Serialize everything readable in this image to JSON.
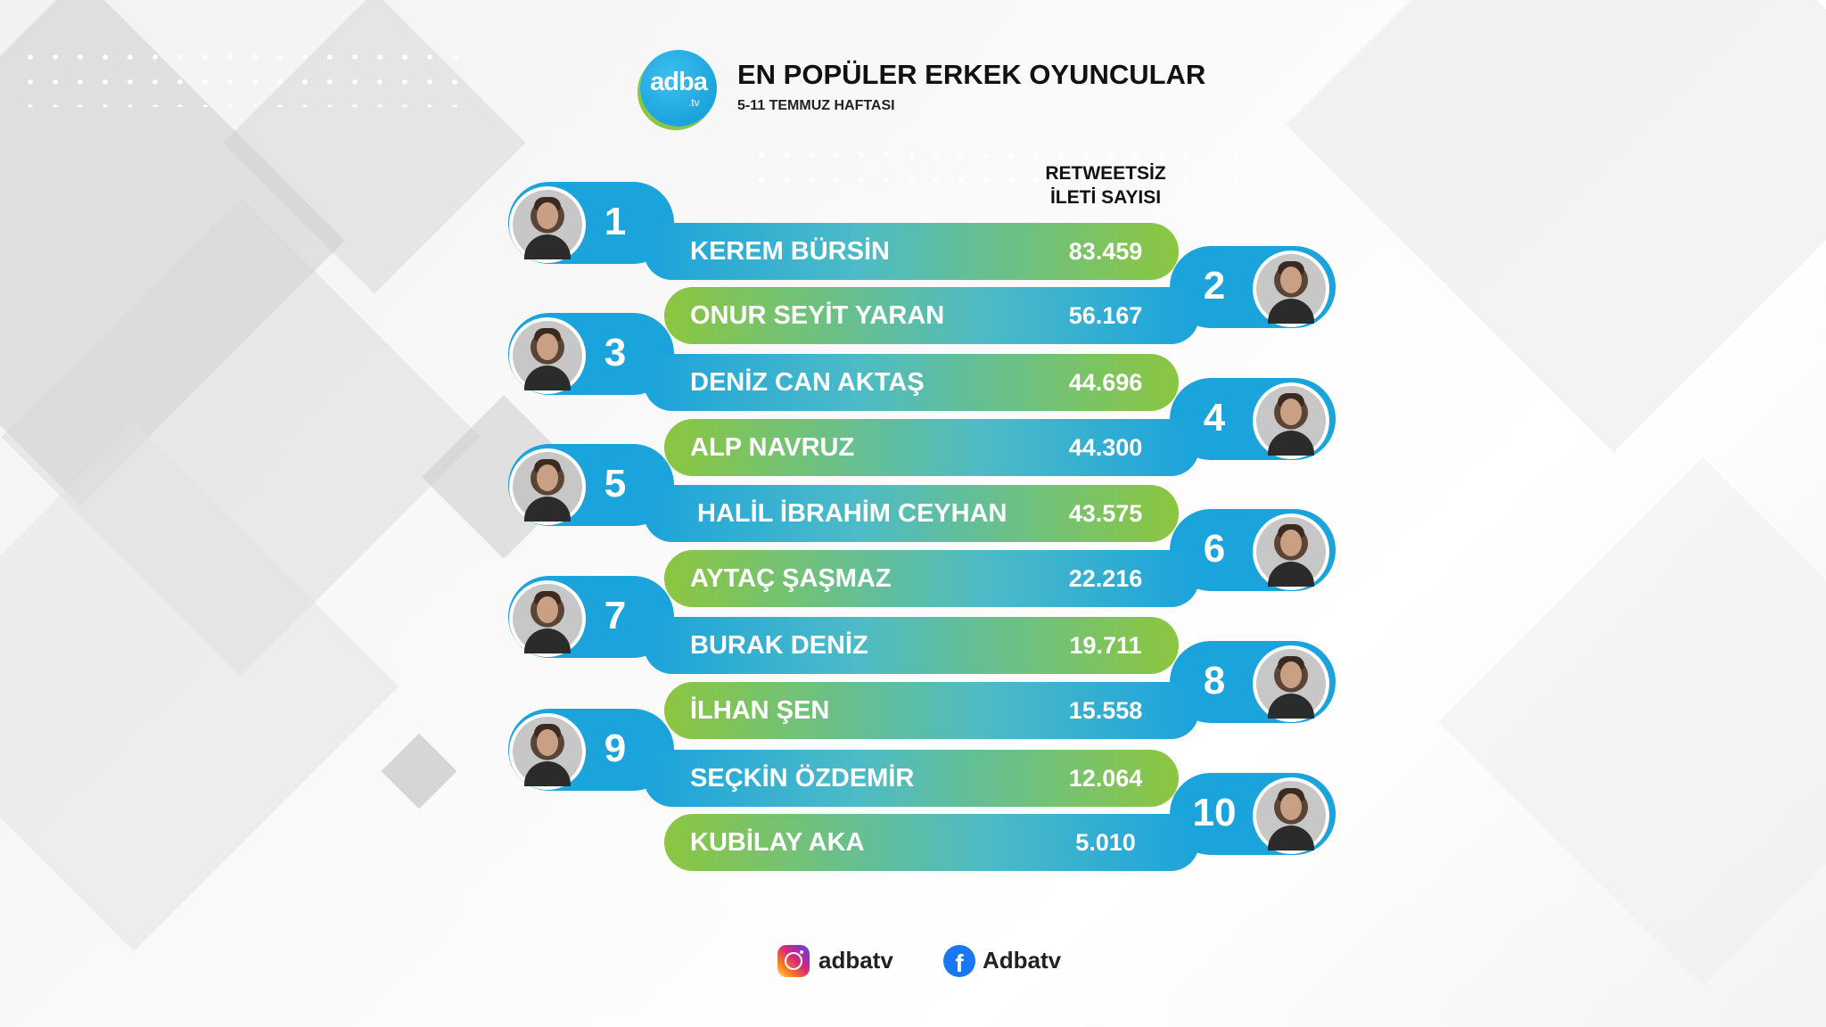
{
  "header": {
    "logo_text": "adba",
    "logo_sub": ".tv",
    "title": "EN POPÜLER ERKEK OYUNCULAR",
    "subtitle": "5-11 TEMMUZ HAFTASI"
  },
  "column_header": {
    "line1": "RETWEETSİZ",
    "line2": "İLETİ SAYISI"
  },
  "colors": {
    "blue": "#1ba3dc",
    "green": "#8cc63f"
  },
  "ranking": [
    {
      "rank": "1",
      "name": "KEREM BÜRSİN",
      "value": "83.459"
    },
    {
      "rank": "2",
      "name": "ONUR SEYİT YARAN",
      "value": "56.167"
    },
    {
      "rank": "3",
      "name": "DENİZ CAN AKTAŞ",
      "value": "44.696"
    },
    {
      "rank": "4",
      "name": "ALP NAVRUZ",
      "value": "44.300"
    },
    {
      "rank": "5",
      "name": "HALİL İBRAHİM CEYHAN",
      "value": "43.575"
    },
    {
      "rank": "6",
      "name": "AYTAÇ ŞAŞMAZ",
      "value": "22.216"
    },
    {
      "rank": "7",
      "name": "BURAK DENİZ",
      "value": "19.711"
    },
    {
      "rank": "8",
      "name": "İLHAN ŞEN",
      "value": "15.558"
    },
    {
      "rank": "9",
      "name": "SEÇKİN ÖZDEMİR",
      "value": "12.064"
    },
    {
      "rank": "10",
      "name": "KUBİLAY AKA",
      "value": "5.010"
    }
  ],
  "footer": {
    "instagram_icon": "instagram-icon",
    "instagram": "adbatv",
    "facebook_icon": "facebook-icon",
    "facebook": "Adbatv"
  }
}
